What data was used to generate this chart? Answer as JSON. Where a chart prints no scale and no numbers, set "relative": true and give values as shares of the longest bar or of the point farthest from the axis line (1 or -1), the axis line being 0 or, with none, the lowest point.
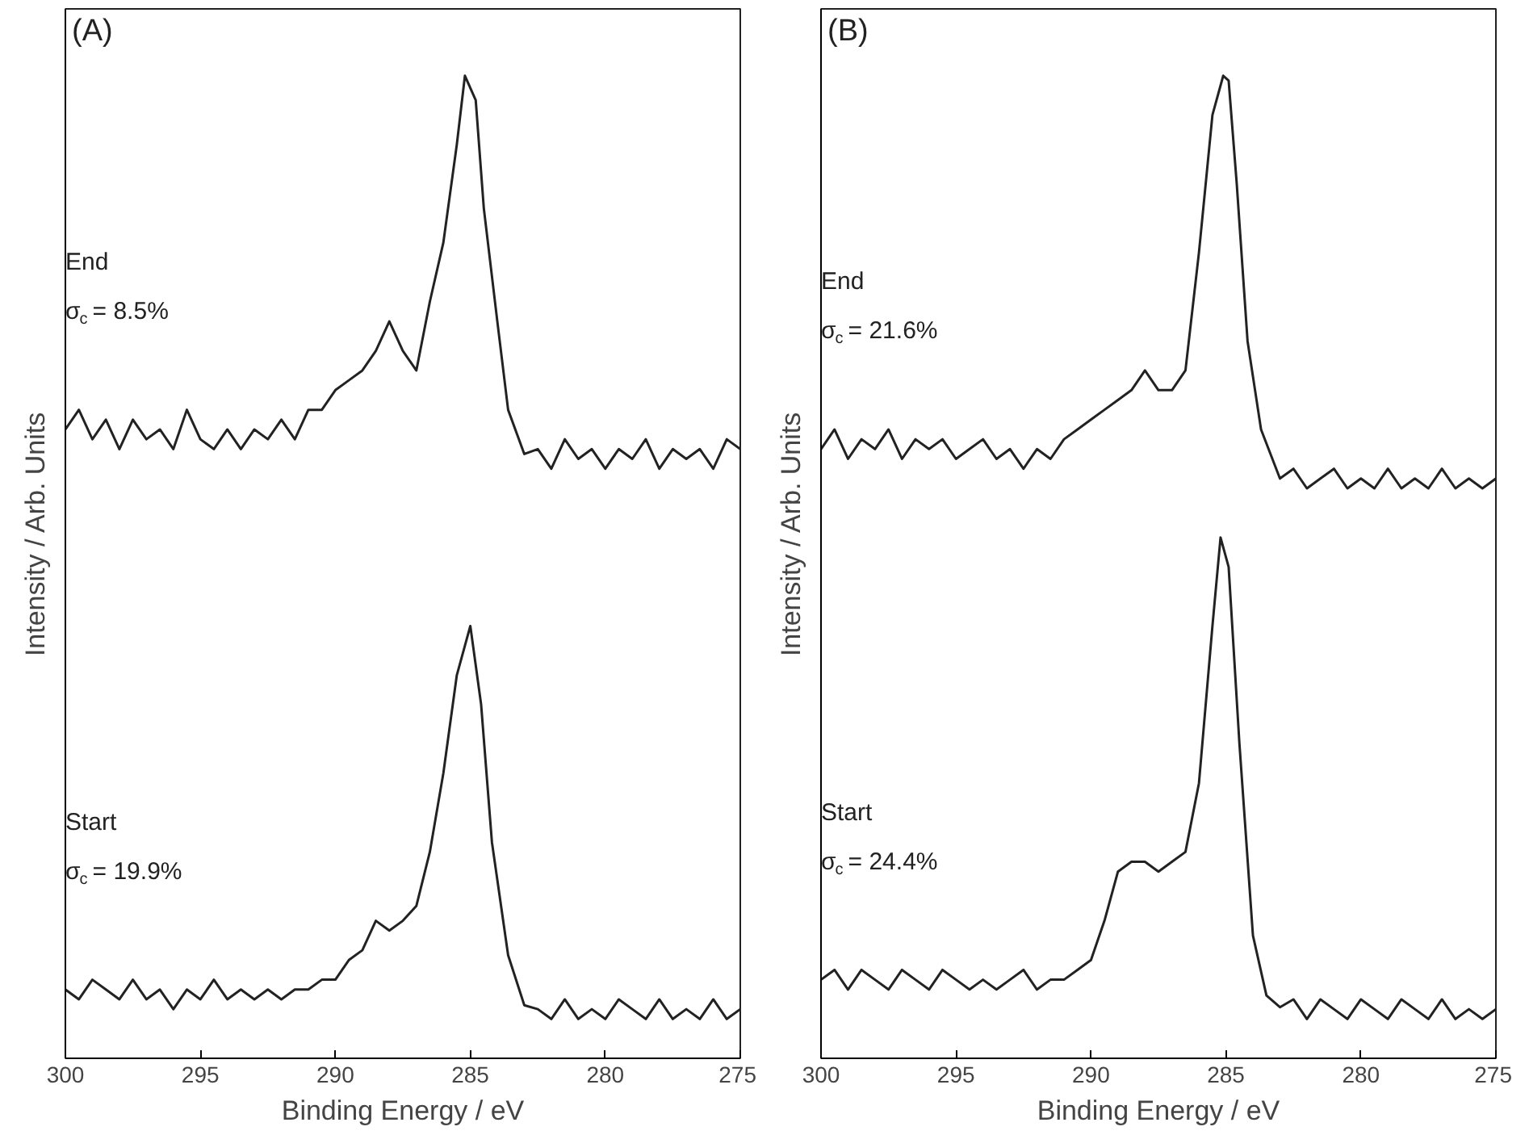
{
  "chart_data": [
    {
      "type": "line",
      "title": "(A)",
      "xlabel": "Binding Energy / eV",
      "ylabel": "Intensity / Arb. Units",
      "relative": true,
      "xlim": [
        300,
        275
      ],
      "xticks": [
        300,
        295,
        290,
        285,
        280,
        275
      ],
      "grid": false,
      "series": [
        {
          "color": "#222222",
          "x": [
            300,
            299.5,
            299,
            298.5,
            298,
            297.5,
            297,
            296.5,
            296,
            295.5,
            295,
            294.5,
            294,
            293.5,
            293,
            292.5,
            292,
            291.5,
            291,
            290.5,
            290,
            289.5,
            289,
            288.5,
            288,
            287.5,
            287,
            286.5,
            286,
            285.5,
            285.2,
            284.8,
            284.5,
            284,
            283.6,
            283,
            282.5,
            282,
            281.5,
            281,
            280.5,
            280,
            279.5,
            279,
            278.5,
            278,
            277.5,
            277,
            276.5,
            276,
            275.5,
            275
          ],
          "values": [
            0.64,
            0.66,
            0.63,
            0.65,
            0.62,
            0.65,
            0.63,
            0.64,
            0.62,
            0.66,
            0.63,
            0.62,
            0.64,
            0.62,
            0.64,
            0.63,
            0.65,
            0.63,
            0.66,
            0.66,
            0.68,
            0.69,
            0.7,
            0.72,
            0.75,
            0.72,
            0.7,
            0.77,
            0.83,
            0.93,
            1.0,
            0.975,
            0.865,
            0.75,
            0.66,
            0.615,
            0.62,
            0.6,
            0.63,
            0.61,
            0.62,
            0.6,
            0.62,
            0.61,
            0.63,
            0.6,
            0.62,
            0.61,
            0.62,
            0.6,
            0.63,
            0.62
          ]
        },
        {
          "color": "#222222",
          "x": [
            300,
            299.5,
            299,
            298.5,
            298,
            297.5,
            297,
            296.5,
            296,
            295.5,
            295,
            294.5,
            294,
            293.5,
            293,
            292.5,
            292,
            291.5,
            291,
            290.5,
            290,
            289.5,
            289,
            288.5,
            288,
            287.5,
            287,
            286.5,
            286,
            285.5,
            285,
            284.6,
            284.2,
            283.6,
            283,
            282.5,
            282,
            281.5,
            281,
            280.5,
            280,
            279.5,
            279,
            278.5,
            278,
            277.5,
            277,
            276.5,
            276,
            275.5,
            275
          ],
          "values": [
            0.07,
            0.06,
            0.08,
            0.07,
            0.06,
            0.08,
            0.06,
            0.07,
            0.05,
            0.07,
            0.06,
            0.08,
            0.06,
            0.07,
            0.06,
            0.07,
            0.06,
            0.07,
            0.07,
            0.08,
            0.08,
            0.1,
            0.11,
            0.14,
            0.13,
            0.14,
            0.155,
            0.21,
            0.29,
            0.39,
            0.44,
            0.36,
            0.22,
            0.105,
            0.054,
            0.05,
            0.04,
            0.06,
            0.04,
            0.05,
            0.04,
            0.06,
            0.05,
            0.04,
            0.06,
            0.04,
            0.05,
            0.04,
            0.06,
            0.04,
            0.05
          ]
        }
      ],
      "annotations": [
        "End",
        "σ$_{c}$ = 8.5%",
        "Start",
        "σ$_{c}$ = 19.9%"
      ]
    },
    {
      "type": "line",
      "title": "(B)",
      "xlabel": "Binding Energy / eV",
      "ylabel": "Intensity / Arb. Units",
      "relative": true,
      "xlim": [
        300,
        275
      ],
      "xticks": [
        300,
        295,
        290,
        285,
        280,
        275
      ],
      "grid": false,
      "series": [
        {
          "color": "#222222",
          "x": [
            300,
            299.5,
            299,
            298.5,
            298,
            297.5,
            297,
            296.5,
            296,
            295.5,
            295,
            294.5,
            294,
            293.5,
            293,
            292.5,
            292,
            291.5,
            291,
            290.5,
            290,
            289.5,
            289,
            288.5,
            288,
            287.5,
            287,
            286.5,
            286,
            285.5,
            285.1,
            284.9,
            284.6,
            284.2,
            283.7,
            283,
            282.5,
            282,
            281.5,
            281,
            280.5,
            280,
            279.5,
            279,
            278.5,
            278,
            277.5,
            277,
            276.5,
            276,
            275.5,
            275
          ],
          "values": [
            0.62,
            0.64,
            0.61,
            0.63,
            0.62,
            0.64,
            0.61,
            0.63,
            0.62,
            0.63,
            0.61,
            0.62,
            0.63,
            0.61,
            0.62,
            0.6,
            0.62,
            0.61,
            0.63,
            0.64,
            0.65,
            0.66,
            0.67,
            0.68,
            0.7,
            0.68,
            0.68,
            0.7,
            0.82,
            0.96,
            1.0,
            0.995,
            0.89,
            0.73,
            0.64,
            0.59,
            0.6,
            0.58,
            0.59,
            0.6,
            0.58,
            0.59,
            0.58,
            0.6,
            0.58,
            0.59,
            0.58,
            0.6,
            0.58,
            0.59,
            0.58,
            0.59
          ]
        },
        {
          "color": "#222222",
          "x": [
            300,
            299.5,
            299,
            298.5,
            298,
            297.5,
            297,
            296.5,
            296,
            295.5,
            295,
            294.5,
            294,
            293.5,
            293,
            292.5,
            292,
            291.5,
            291,
            290.5,
            290,
            289.5,
            289,
            288.5,
            288,
            287.5,
            287,
            286.5,
            286,
            285.5,
            285.2,
            284.9,
            284.5,
            284,
            283.5,
            283,
            282.5,
            282,
            281.5,
            281,
            280.5,
            280,
            279.5,
            279,
            278.5,
            278,
            277.5,
            277,
            276.5,
            276,
            275.5,
            275
          ],
          "values": [
            0.08,
            0.09,
            0.07,
            0.09,
            0.08,
            0.07,
            0.09,
            0.08,
            0.07,
            0.09,
            0.08,
            0.07,
            0.08,
            0.07,
            0.08,
            0.09,
            0.07,
            0.08,
            0.08,
            0.09,
            0.1,
            0.14,
            0.19,
            0.2,
            0.2,
            0.19,
            0.2,
            0.21,
            0.28,
            0.44,
            0.53,
            0.5,
            0.32,
            0.125,
            0.064,
            0.052,
            0.06,
            0.04,
            0.06,
            0.05,
            0.04,
            0.06,
            0.05,
            0.04,
            0.06,
            0.05,
            0.04,
            0.06,
            0.04,
            0.05,
            0.04,
            0.05
          ]
        }
      ],
      "annotations": [
        "End",
        "σ$_{c}$ = 21.6%",
        "Start",
        "σ$_{c}$ = 24.4%"
      ]
    }
  ]
}
